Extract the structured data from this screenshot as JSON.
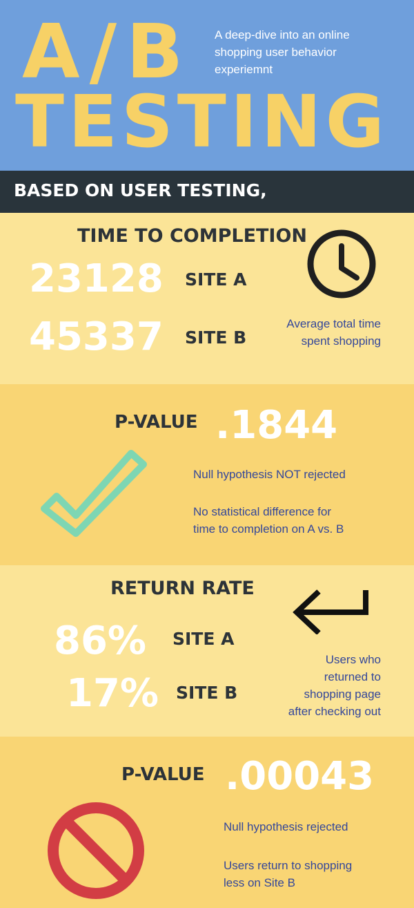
{
  "header": {
    "title_line1": "A/B",
    "title_line2": "TESTING",
    "subtitle": "A deep-dive into an online shopping user behavior experiemnt"
  },
  "banner": {
    "text": "BASED ON USER TESTING,"
  },
  "time_section": {
    "heading": "TIME TO COMPLETION",
    "site_a_value": "23128",
    "site_a_label": "SITE A",
    "site_b_value": "45337",
    "site_b_label": "SITE B",
    "note_line1": "Average total time",
    "note_line2": "spent shopping",
    "icon": "clock-icon"
  },
  "pvalue1_section": {
    "label": "P-VALUE",
    "value": ".1844",
    "result": "Null hypothesis NOT rejected",
    "note_line1": "No statistical difference for",
    "note_line2": "time to completion on A vs. B",
    "icon": "checkmark-icon"
  },
  "return_section": {
    "heading": "RETURN RATE",
    "site_a_value": "86%",
    "site_a_label": "SITE A",
    "site_b_value": "17%",
    "site_b_label": "SITE B",
    "note_line1": "Users who",
    "note_line2": "returned to",
    "note_line3": "shopping page",
    "note_line4": "after checking out",
    "icon": "return-arrow-icon"
  },
  "pvalue2_section": {
    "label": "P-VALUE",
    "value": ".00043",
    "result": "Null hypothesis rejected",
    "note_line1": "Users return to shopping",
    "note_line2": "less on Site B",
    "icon": "prohibited-icon"
  },
  "colors": {
    "header_bg": "#6f9fdc",
    "title_yellow": "#f7d166",
    "banner_bg": "#29343b",
    "light_yellow": "#fbe497",
    "mid_yellow": "#f9d574",
    "text_blue": "#34479a",
    "check_green": "#7ed6b3",
    "stop_red": "#d23d44"
  }
}
